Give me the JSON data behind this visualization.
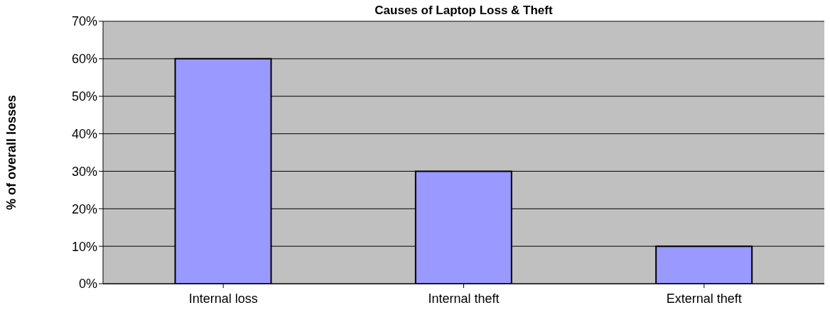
{
  "chart_data": {
    "type": "bar",
    "title": "Causes of Laptop Loss & Theft",
    "ylabel": "% of overall losses",
    "categories": [
      "Internal loss",
      "Internal theft",
      "External theft"
    ],
    "values": [
      60,
      30,
      10
    ],
    "color": "#9999ff",
    "ylim": [
      0,
      70
    ],
    "yticks": [
      {
        "value": 0,
        "label": "0%"
      },
      {
        "value": 10,
        "label": "10%"
      },
      {
        "value": 20,
        "label": "20%"
      },
      {
        "value": 30,
        "label": "30%"
      },
      {
        "value": 40,
        "label": "40%"
      },
      {
        "value": 50,
        "label": "50%"
      },
      {
        "value": 60,
        "label": "60%"
      },
      {
        "value": 70,
        "label": "70%"
      }
    ],
    "grid": "y"
  }
}
